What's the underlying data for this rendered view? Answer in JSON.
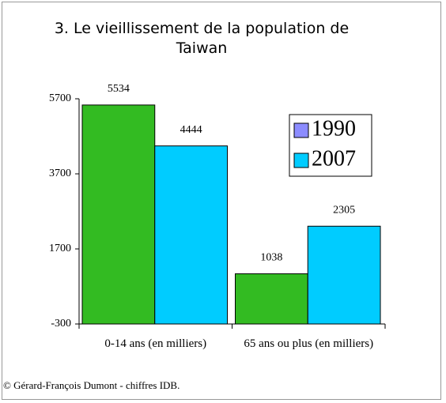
{
  "chart_data": {
    "type": "bar",
    "title": "3. Le vieillissement de la population de Taiwan",
    "categories": [
      "0-14 ans (en milliers)",
      "65 ans ou plus (en milliers)"
    ],
    "series": [
      {
        "name": "1990",
        "color": "#33bb22",
        "legend_color": "#8c8cff",
        "values": [
          5534,
          1038
        ]
      },
      {
        "name": "2007",
        "color": "#00ccff",
        "legend_color": "#00ccff",
        "values": [
          4444,
          2305
        ]
      }
    ],
    "ylim": [
      -300,
      5700
    ],
    "yticks": [
      -300,
      1700,
      3700,
      5700
    ],
    "legend": "upper right",
    "footer": "© Gérard-François Dumont - chiffres IDB."
  }
}
